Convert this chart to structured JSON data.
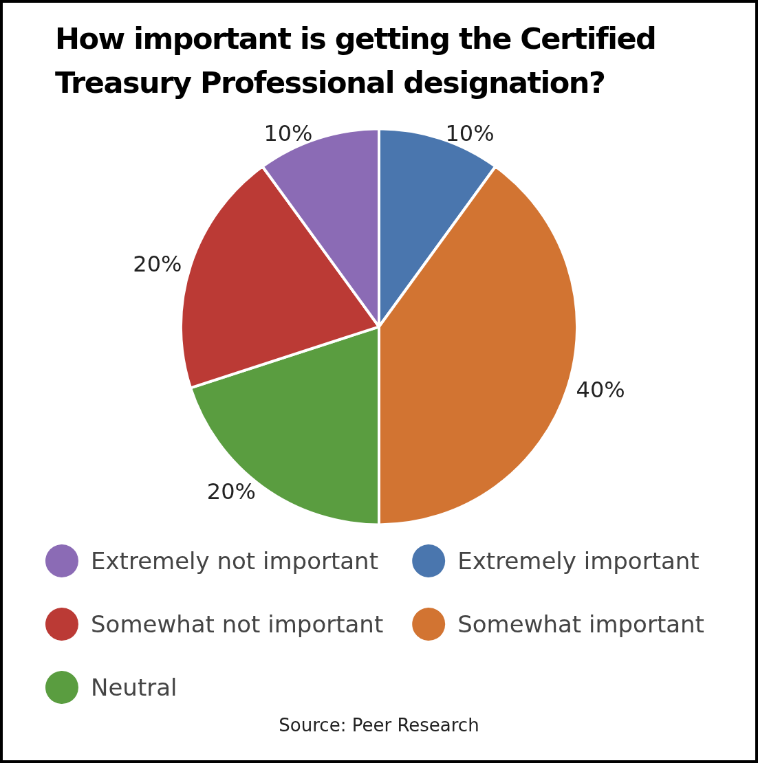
{
  "chart_data": {
    "type": "pie",
    "title": "How important is getting the Certified Treasury Professional designation?",
    "categories": [
      "Extremely important",
      "Somewhat important",
      "Neutral",
      "Somewhat not important",
      "Extremely not important"
    ],
    "values": [
      10,
      40,
      20,
      20,
      10
    ],
    "colors": [
      "#4a76ae",
      "#d27432",
      "#5a9d40",
      "#bb3a35",
      "#8b6bb5"
    ],
    "value_labels": [
      "10%",
      "40%",
      "20%",
      "20%",
      "10%"
    ],
    "legend": "bottom",
    "annotations": [
      "Source: Peer Research"
    ]
  }
}
